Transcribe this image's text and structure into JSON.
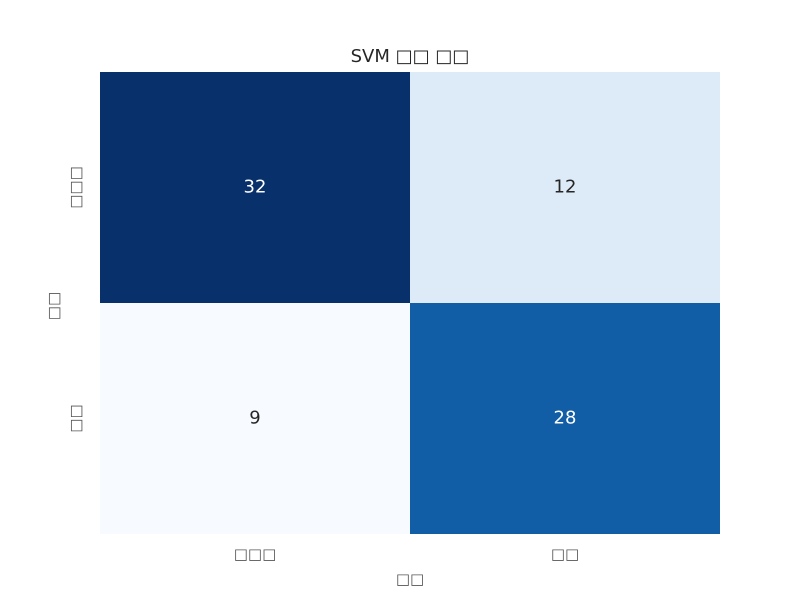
{
  "chart_data": {
    "type": "heatmap",
    "title": "SVM □□ □□",
    "xlabel": "□□",
    "ylabel": "□□",
    "x_categories": [
      "□□□",
      "□□"
    ],
    "y_categories": [
      "□□□",
      "□□"
    ],
    "values": [
      [
        32,
        12
      ],
      [
        9,
        28
      ]
    ],
    "colormap": "Blues",
    "value_range": [
      9,
      32
    ],
    "grid": false,
    "legend": "none"
  }
}
